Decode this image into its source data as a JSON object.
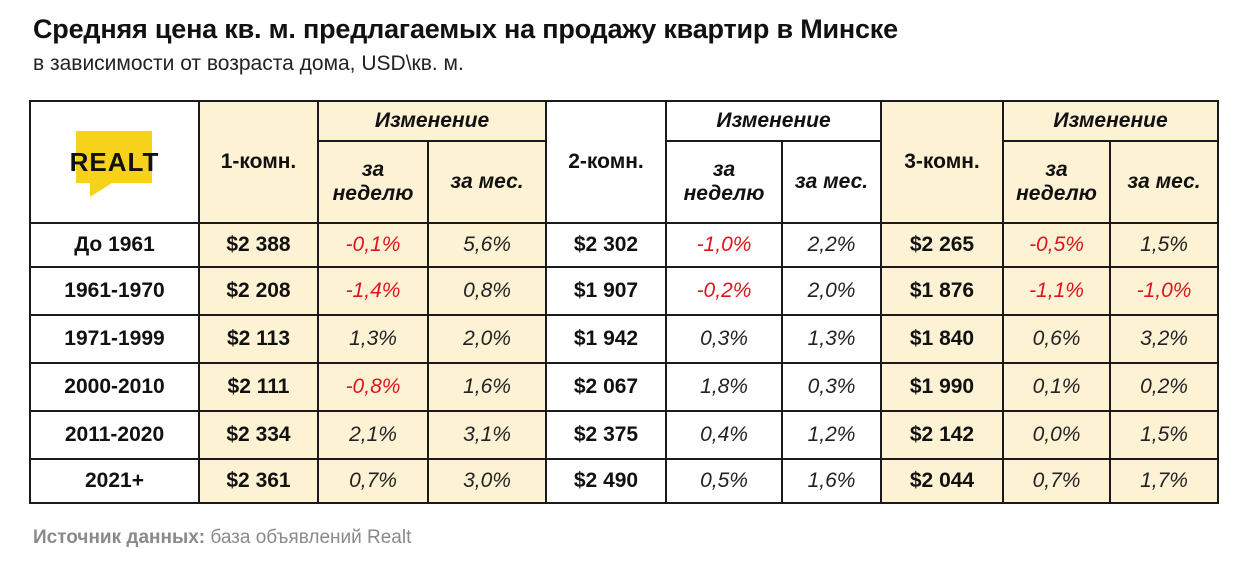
{
  "header": {
    "title": "Средняя цена кв. м. предлагаемых на продажу квартир в Минске",
    "subtitle": "в зависимости от возраста дома, USD\\кв. м."
  },
  "logo": {
    "text": "REALT",
    "icon": "realt-logo",
    "color": "#f7d21a"
  },
  "table_headers": {
    "rooms": [
      "1-комн.",
      "2-комн.",
      "3-комн."
    ],
    "change": "Изменение",
    "week": "за неделю",
    "month": "за мес."
  },
  "colors": {
    "accent_bg": "#fdf2d4",
    "negative": "#e0141e",
    "border": "#1a1a1a"
  },
  "chart_data": {
    "type": "table",
    "title": "Средняя цена кв. м. предлагаемых на продажу квартир в Минске",
    "subtitle": "в зависимости от возраста дома, USD\\кв. м.",
    "columns": [
      "1-комн.",
      "за неделю",
      "за мес.",
      "2-комн.",
      "за неделю",
      "за мес.",
      "3-комн.",
      "за неделю",
      "за мес."
    ],
    "rows": [
      {
        "label": "До 1961",
        "cells": [
          "$2 388",
          "-0,1%",
          "5,6%",
          "$2 302",
          "-1,0%",
          "2,2%",
          "$2 265",
          "-0,5%",
          "1,5%"
        ]
      },
      {
        "label": "1961-1970",
        "cells": [
          "$2 208",
          "-1,4%",
          "0,8%",
          "$1 907",
          "-0,2%",
          "2,0%",
          "$1 876",
          "-1,1%",
          "-1,0%"
        ]
      },
      {
        "label": "1971-1999",
        "cells": [
          "$2 113",
          "1,3%",
          "2,0%",
          "$1 942",
          "0,3%",
          "1,3%",
          "$1 840",
          "0,6%",
          "3,2%"
        ]
      },
      {
        "label": "2000-2010",
        "cells": [
          "$2 111",
          "-0,8%",
          "1,6%",
          "$2 067",
          "1,8%",
          "0,3%",
          "$1 990",
          "0,1%",
          "0,2%"
        ]
      },
      {
        "label": "2011-2020",
        "cells": [
          "$2 334",
          "2,1%",
          "3,1%",
          "$2 375",
          "0,4%",
          "1,2%",
          "$2 142",
          "0,0%",
          "1,5%"
        ]
      },
      {
        "label": "2021+",
        "cells": [
          "$2 361",
          "0,7%",
          "3,0%",
          "$2 490",
          "0,5%",
          "1,6%",
          "$2 044",
          "0,7%",
          "1,7%"
        ]
      }
    ]
  },
  "source": {
    "label": "Источник данных:",
    "text": " база объявлений Realt"
  }
}
